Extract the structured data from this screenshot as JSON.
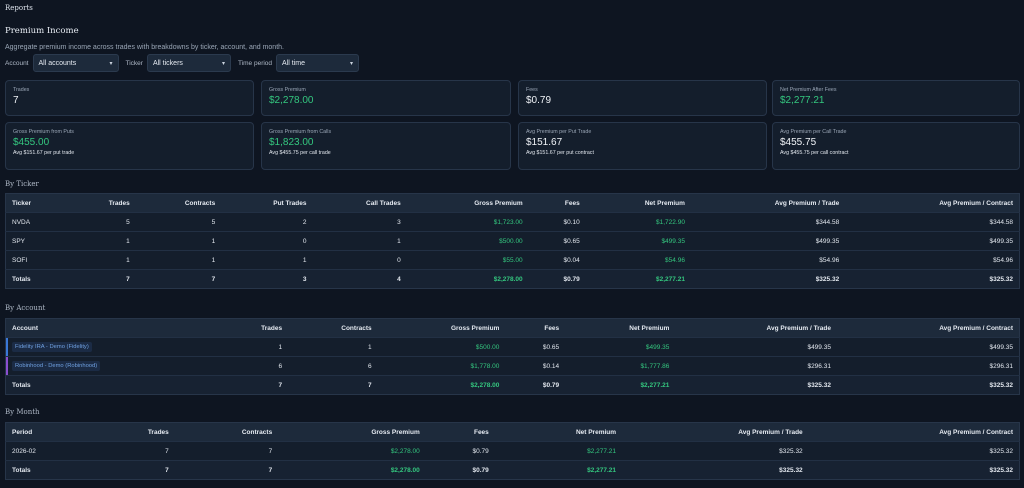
{
  "header": {
    "title": "Reports"
  },
  "page": {
    "title": "Premium Income",
    "description": "Aggregate premium income across trades with breakdowns by ticker, account, and month."
  },
  "filters": {
    "account_label": "Account",
    "account_value": "All accounts",
    "ticker_label": "Ticker",
    "ticker_value": "All tickers",
    "period_label": "Time period",
    "period_value": "All time"
  },
  "cards": [
    {
      "label": "Trades",
      "value": "7",
      "sub": ""
    },
    {
      "label": "Gross Premium",
      "value": "$2,278.00",
      "sub": ""
    },
    {
      "label": "Fees",
      "value": "$0.79",
      "sub": ""
    },
    {
      "label": "Net Premium After Fees",
      "value": "$2,277.21",
      "sub": ""
    },
    {
      "label": "Gross Premium from Puts",
      "value": "$455.00",
      "sub": "Avg $151.67 per put trade"
    },
    {
      "label": "Gross Premium from Calls",
      "value": "$1,823.00",
      "sub": "Avg $455.75 per call trade"
    },
    {
      "label": "Avg Premium per Put Trade",
      "value": "$151.67",
      "sub": "Avg $151.67 per put contract"
    },
    {
      "label": "Avg Premium per Call Trade",
      "value": "$455.75",
      "sub": "Avg $455.75 per call contract"
    }
  ],
  "by_ticker": {
    "title": "By Ticker",
    "headers": [
      "Ticker",
      "Trades",
      "Contracts",
      "Put Trades",
      "Call Trades",
      "Gross Premium",
      "Fees",
      "Net Premium",
      "Avg Premium / Trade",
      "Avg Premium / Contract"
    ],
    "rows": [
      [
        "NVDA",
        "5",
        "5",
        "2",
        "3",
        "$1,723.00",
        "$0.10",
        "$1,722.90",
        "$344.58",
        "$344.58"
      ],
      [
        "SPY",
        "1",
        "1",
        "0",
        "1",
        "$500.00",
        "$0.65",
        "$499.35",
        "$499.35",
        "$499.35"
      ],
      [
        "SOFI",
        "1",
        "1",
        "1",
        "0",
        "$55.00",
        "$0.04",
        "$54.96",
        "$54.96",
        "$54.96"
      ]
    ],
    "totals": [
      "Totals",
      "7",
      "7",
      "3",
      "4",
      "$2,278.00",
      "$0.79",
      "$2,277.21",
      "$325.32",
      "$325.32"
    ]
  },
  "by_account": {
    "title": "By Account",
    "headers": [
      "Account",
      "Trades",
      "Contracts",
      "Gross Premium",
      "Fees",
      "Net Premium",
      "Avg Premium / Trade",
      "Avg Premium / Contract"
    ],
    "rows": [
      [
        "Fidelity IRA - Demo (Fidelity)",
        "1",
        "1",
        "$500.00",
        "$0.65",
        "$499.35",
        "$499.35",
        "$499.35"
      ],
      [
        "Robinhood - Demo (Robinhood)",
        "6",
        "6",
        "$1,778.00",
        "$0.14",
        "$1,777.86",
        "$296.31",
        "$296.31"
      ]
    ],
    "totals": [
      "Totals",
      "7",
      "7",
      "$2,278.00",
      "$0.79",
      "$2,277.21",
      "$325.32",
      "$325.32"
    ]
  },
  "by_month": {
    "title": "By Month",
    "headers": [
      "Period",
      "Trades",
      "Contracts",
      "Gross Premium",
      "Fees",
      "Net Premium",
      "Avg Premium / Trade",
      "Avg Premium / Contract"
    ],
    "rows": [
      [
        "2026-02",
        "7",
        "7",
        "$2,278.00",
        "$0.79",
        "$2,277.21",
        "$325.32",
        "$325.32"
      ]
    ],
    "totals": [
      "Totals",
      "7",
      "7",
      "$2,278.00",
      "$0.79",
      "$2,277.21",
      "$325.32",
      "$325.32"
    ]
  },
  "colors": {
    "positive": "#34c77f",
    "background": "#0e1521",
    "card": "#141e2c"
  }
}
